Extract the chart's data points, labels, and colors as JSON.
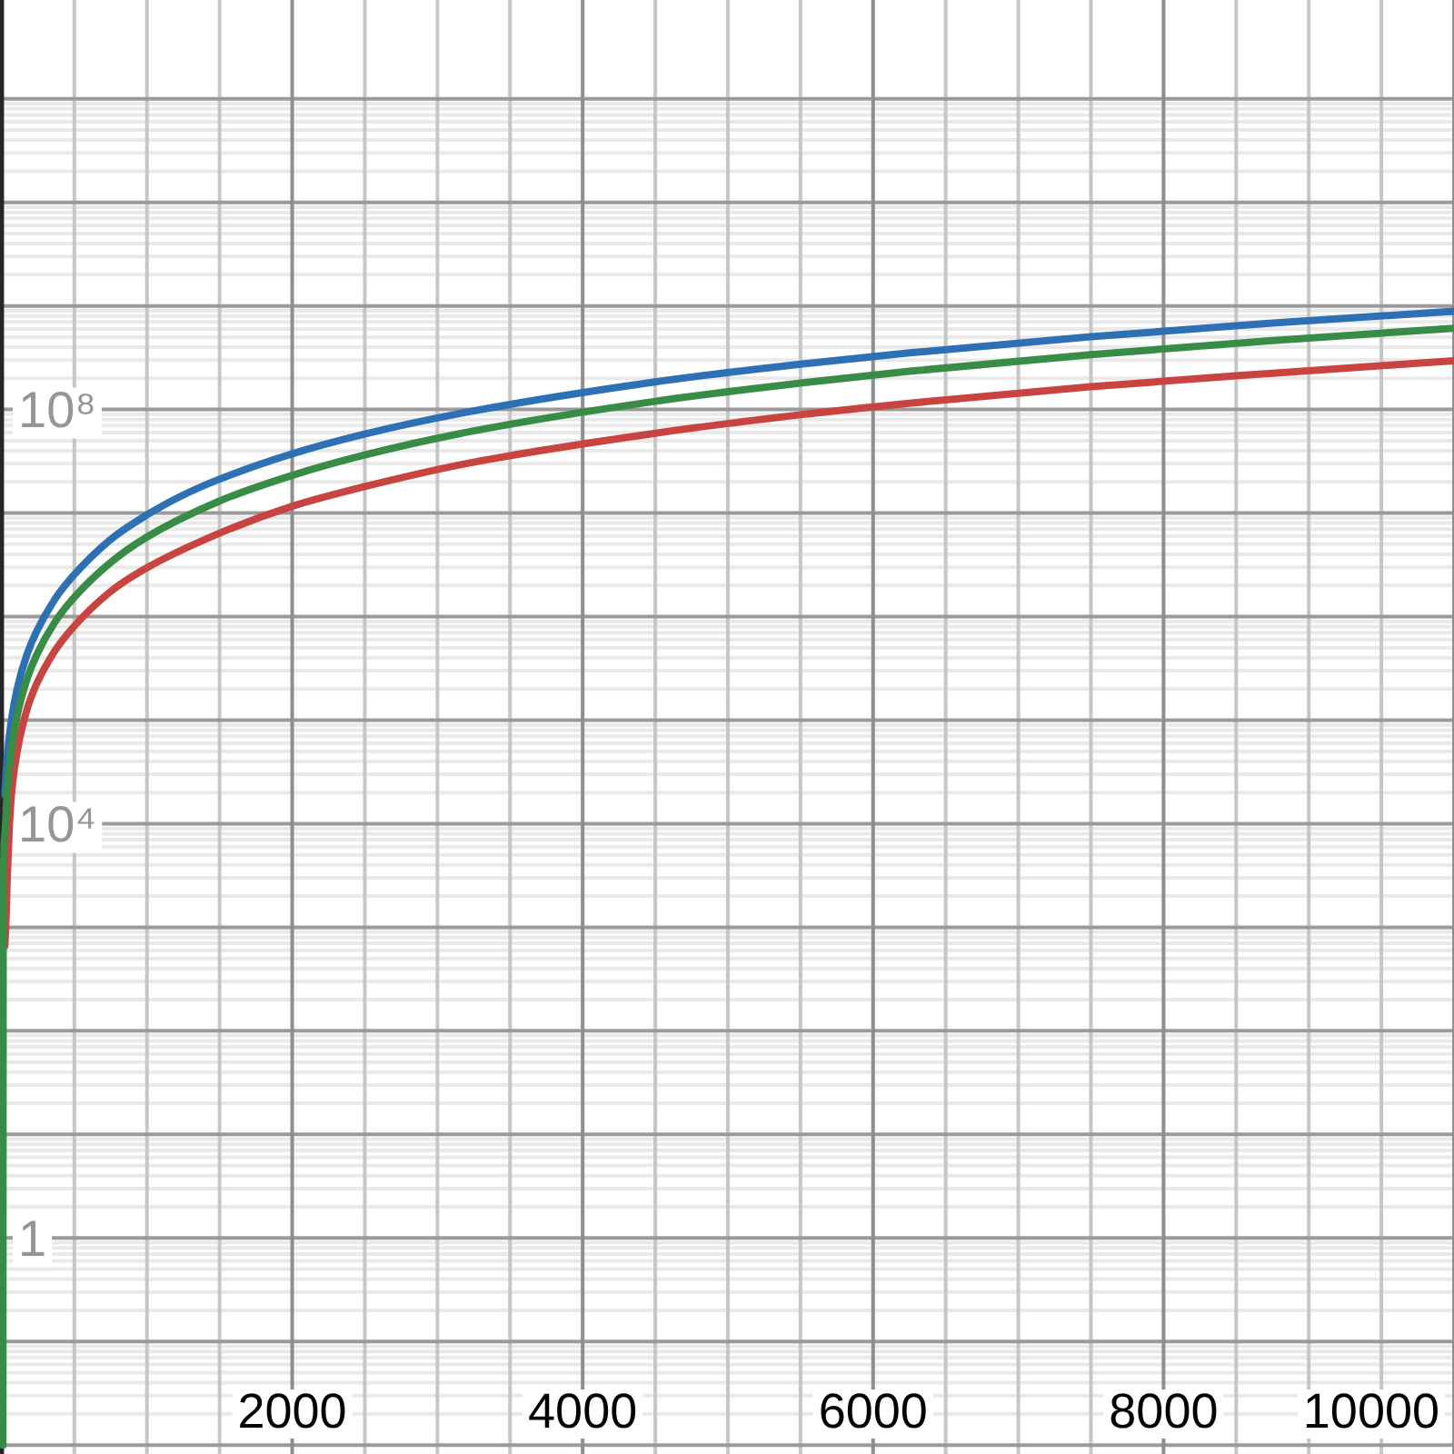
{
  "chart_data": {
    "type": "line",
    "log": "y",
    "grid": true,
    "xlim": [
      -12,
      10000
    ],
    "xticks": [
      {
        "value": 0,
        "label": null
      },
      2000,
      4000,
      6000,
      8000,
      10000
    ],
    "ylim": [
      0.0082,
      900000000000.0
    ],
    "yticks": [
      {
        "value": 0.01,
        "label": null
      },
      {
        "value": 0.1,
        "label": null
      },
      1,
      {
        "value": 10,
        "label": null
      },
      {
        "value": 100,
        "label": null
      },
      {
        "value": 1000,
        "label": null
      },
      {
        "value": 10000,
        "label": "10⁴"
      },
      {
        "value": 100000,
        "label": null
      },
      {
        "value": 1000000,
        "label": null
      },
      {
        "value": 10000000,
        "label": null
      },
      {
        "value": 100000000,
        "label": "10⁸"
      },
      {
        "value": 1000000000,
        "label": null
      },
      {
        "value": 10000000000,
        "label": null
      },
      {
        "value": 100000000000,
        "label": null
      }
    ],
    "series": [
      {
        "color": "#c74440",
        "x": [
          21,
          29,
          38,
          51,
          71,
          113,
          176,
          238,
          363,
          489,
          739,
          989,
          1490,
          1990,
          2500,
          3250,
          4500,
          5500,
          6250,
          7500,
          8750,
          10000
        ],
        "values": [
          660,
          1100,
          3000,
          8700,
          22000,
          56000,
          130000,
          220000,
          460000,
          780000,
          1700000,
          2900000,
          6300000,
          11500000,
          18000000,
          31000000,
          59000000,
          89000000,
          115000000,
          166000000,
          224000000,
          295000000
        ]
      },
      {
        "color": "#2d70b3",
        "x": [
          21,
          38,
          71,
          113,
          176,
          238,
          363,
          489,
          739,
          989,
          1240,
          1490,
          1990,
          2500,
          3250,
          4500,
          5500,
          6250,
          7500,
          8750,
          10000
        ],
        "values": [
          19000,
          45000,
          110000,
          220000,
          440000,
          710000,
          1450000,
          2450000,
          5400000,
          9400000,
          14700000,
          21000000,
          37000000,
          58000000,
          97000000,
          185000000,
          274000000,
          352000000,
          504000000,
          682000000,
          887000000
        ]
      },
      {
        "color": "#388c46",
        "x": [
          8,
          10,
          21,
          38,
          71,
          113,
          176,
          238,
          363,
          489,
          739,
          989,
          1490,
          1990,
          2500,
          3250,
          4500,
          5500,
          6250,
          7500,
          8750,
          10000
        ],
        "values": [
          0.01,
          1700,
          7900,
          21000,
          58000,
          122000,
          254000,
          420000,
          870000,
          1480000,
          3240000,
          5750000,
          12900000,
          22900000,
          36400000,
          62100000,
          120000000,
          180000000,
          234000000,
          339000000,
          463000000,
          608000000
        ]
      }
    ]
  }
}
